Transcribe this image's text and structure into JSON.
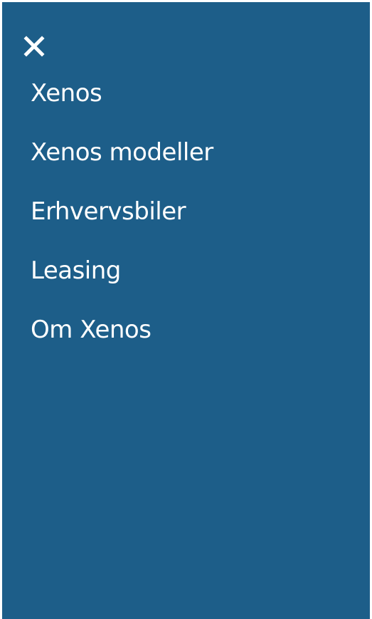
{
  "drawer": {
    "background": "#1d5e89",
    "close_icon": "close-icon",
    "items": [
      {
        "label": "Xenos"
      },
      {
        "label": "Xenos modeller"
      },
      {
        "label": "Erhvervsbiler"
      },
      {
        "label": "Leasing"
      },
      {
        "label": "Om Xenos"
      }
    ]
  }
}
